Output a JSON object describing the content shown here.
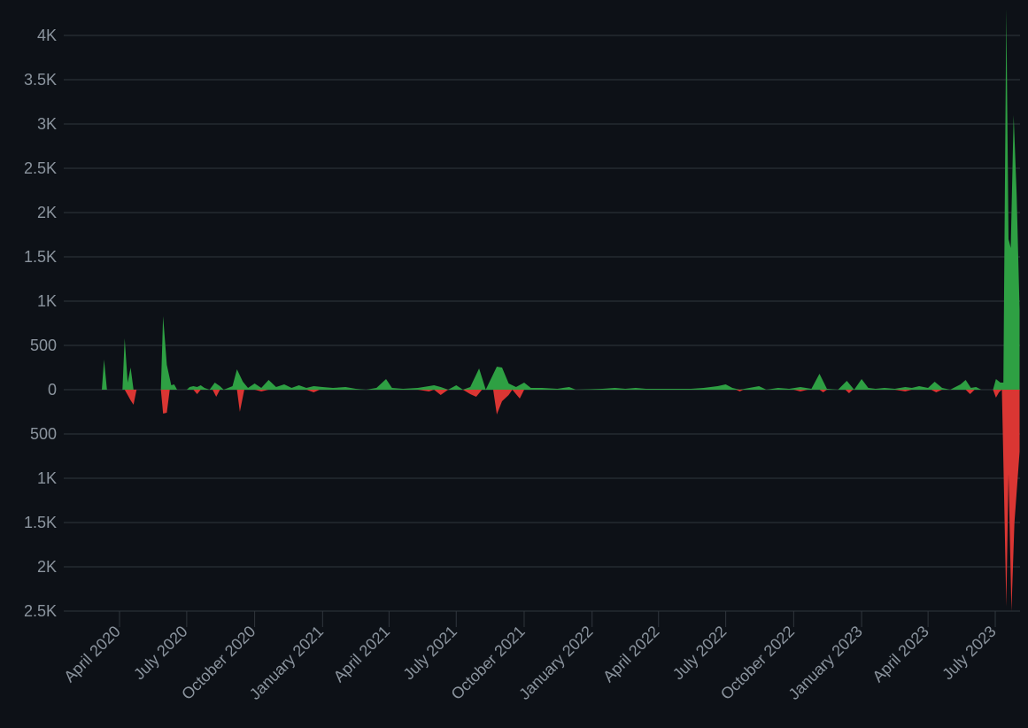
{
  "chart_data": {
    "type": "area",
    "x_axis": {
      "type": "date",
      "tick_labels": [
        "April 2020",
        "July 2020",
        "October 2020",
        "January 2021",
        "April 2021",
        "July 2021",
        "October 2021",
        "January 2022",
        "April 2022",
        "July 2022",
        "October 2022",
        "January 2023",
        "April 2023",
        "July 2023"
      ],
      "tick_dates": [
        "2020-04-01",
        "2020-07-01",
        "2020-10-01",
        "2021-01-01",
        "2021-04-01",
        "2021-07-01",
        "2021-10-01",
        "2022-01-01",
        "2022-04-01",
        "2022-07-01",
        "2022-10-01",
        "2023-01-01",
        "2023-04-01",
        "2023-07-01"
      ]
    },
    "y_axis": {
      "range": [
        -2500,
        4000
      ],
      "tick_values": [
        4000,
        3500,
        3000,
        2500,
        2000,
        1500,
        1000,
        500,
        0,
        -500,
        -1000,
        -1500,
        -2000,
        -2500
      ],
      "tick_labels": [
        "4K",
        "3.5K",
        "3K",
        "2.5K",
        "2K",
        "1.5K",
        "1K",
        "500",
        "0",
        "500",
        "1K",
        "1.5K",
        "2K",
        "2.5K"
      ],
      "grid": true
    },
    "legend": "none",
    "colors": {
      "additions": "#2ea043",
      "deletions": "#da3633",
      "background": "#0d1117",
      "grid": "#30363d",
      "text": "#8b949e"
    },
    "series": [
      {
        "color": "#2ea043",
        "points": [
          [
            "2020-03-08",
            0
          ],
          [
            "2020-03-11",
            340
          ],
          [
            "2020-03-15",
            0
          ],
          [
            "2020-04-05",
            0
          ],
          [
            "2020-04-08",
            580
          ],
          [
            "2020-04-12",
            80
          ],
          [
            "2020-04-16",
            250
          ],
          [
            "2020-04-20",
            0
          ],
          [
            "2020-05-27",
            0
          ],
          [
            "2020-05-30",
            830
          ],
          [
            "2020-06-04",
            280
          ],
          [
            "2020-06-10",
            50
          ],
          [
            "2020-06-14",
            60
          ],
          [
            "2020-06-18",
            0
          ],
          [
            "2020-07-01",
            0
          ],
          [
            "2020-07-05",
            30
          ],
          [
            "2020-07-10",
            40
          ],
          [
            "2020-07-15",
            30
          ],
          [
            "2020-07-20",
            50
          ],
          [
            "2020-07-25",
            20
          ],
          [
            "2020-08-01",
            0
          ],
          [
            "2020-08-08",
            80
          ],
          [
            "2020-08-15",
            40
          ],
          [
            "2020-08-20",
            0
          ],
          [
            "2020-09-01",
            40
          ],
          [
            "2020-09-07",
            230
          ],
          [
            "2020-09-15",
            90
          ],
          [
            "2020-09-22",
            20
          ],
          [
            "2020-10-01",
            70
          ],
          [
            "2020-10-10",
            20
          ],
          [
            "2020-10-20",
            110
          ],
          [
            "2020-10-30",
            30
          ],
          [
            "2020-11-10",
            60
          ],
          [
            "2020-11-20",
            20
          ],
          [
            "2020-11-30",
            50
          ],
          [
            "2020-12-10",
            20
          ],
          [
            "2020-12-20",
            40
          ],
          [
            "2021-01-01",
            30
          ],
          [
            "2021-01-15",
            20
          ],
          [
            "2021-02-01",
            30
          ],
          [
            "2021-02-15",
            10
          ],
          [
            "2021-03-01",
            0
          ],
          [
            "2021-03-15",
            20
          ],
          [
            "2021-03-28",
            120
          ],
          [
            "2021-04-05",
            20
          ],
          [
            "2021-04-20",
            10
          ],
          [
            "2021-05-10",
            20
          ],
          [
            "2021-05-25",
            40
          ],
          [
            "2021-06-01",
            50
          ],
          [
            "2021-06-10",
            30
          ],
          [
            "2021-06-20",
            0
          ],
          [
            "2021-07-01",
            50
          ],
          [
            "2021-07-10",
            0
          ],
          [
            "2021-07-20",
            30
          ],
          [
            "2021-08-01",
            240
          ],
          [
            "2021-08-10",
            0
          ],
          [
            "2021-08-25",
            260
          ],
          [
            "2021-09-01",
            250
          ],
          [
            "2021-09-10",
            70
          ],
          [
            "2021-09-20",
            30
          ],
          [
            "2021-10-01",
            80
          ],
          [
            "2021-10-10",
            20
          ],
          [
            "2021-10-25",
            20
          ],
          [
            "2021-11-15",
            10
          ],
          [
            "2021-12-01",
            30
          ],
          [
            "2021-12-10",
            0
          ],
          [
            "2022-01-15",
            10
          ],
          [
            "2022-02-01",
            20
          ],
          [
            "2022-02-15",
            10
          ],
          [
            "2022-03-01",
            20
          ],
          [
            "2022-03-15",
            10
          ],
          [
            "2022-04-01",
            10
          ],
          [
            "2022-04-20",
            10
          ],
          [
            "2022-05-15",
            10
          ],
          [
            "2022-06-01",
            20
          ],
          [
            "2022-06-20",
            40
          ],
          [
            "2022-07-01",
            60
          ],
          [
            "2022-07-10",
            20
          ],
          [
            "2022-07-20",
            0
          ],
          [
            "2022-08-15",
            40
          ],
          [
            "2022-08-25",
            0
          ],
          [
            "2022-09-10",
            20
          ],
          [
            "2022-09-25",
            10
          ],
          [
            "2022-10-10",
            30
          ],
          [
            "2022-10-25",
            10
          ],
          [
            "2022-11-05",
            180
          ],
          [
            "2022-11-15",
            10
          ],
          [
            "2022-11-30",
            0
          ],
          [
            "2022-12-12",
            100
          ],
          [
            "2022-12-22",
            0
          ],
          [
            "2023-01-01",
            120
          ],
          [
            "2023-01-10",
            20
          ],
          [
            "2023-01-20",
            10
          ],
          [
            "2023-02-01",
            20
          ],
          [
            "2023-02-15",
            10
          ],
          [
            "2023-03-01",
            30
          ],
          [
            "2023-03-10",
            20
          ],
          [
            "2023-03-20",
            40
          ],
          [
            "2023-04-01",
            20
          ],
          [
            "2023-04-10",
            90
          ],
          [
            "2023-04-20",
            20
          ],
          [
            "2023-05-01",
            0
          ],
          [
            "2023-05-15",
            60
          ],
          [
            "2023-05-22",
            110
          ],
          [
            "2023-05-29",
            20
          ],
          [
            "2023-06-05",
            30
          ],
          [
            "2023-06-12",
            0
          ],
          [
            "2023-06-28",
            0
          ],
          [
            "2023-07-02",
            120
          ],
          [
            "2023-07-08",
            80
          ],
          [
            "2023-07-12",
            80
          ],
          [
            "2023-07-16",
            4300
          ],
          [
            "2023-07-19",
            1700
          ],
          [
            "2023-07-22",
            1600
          ],
          [
            "2023-07-26",
            3100
          ],
          [
            "2023-07-30",
            2200
          ],
          [
            "2023-08-03",
            900
          ]
        ]
      },
      {
        "color": "#da3633",
        "points": [
          [
            "2020-04-08",
            0
          ],
          [
            "2020-04-12",
            -60
          ],
          [
            "2020-04-16",
            -120
          ],
          [
            "2020-04-20",
            -170
          ],
          [
            "2020-04-24",
            0
          ],
          [
            "2020-05-27",
            0
          ],
          [
            "2020-05-30",
            -270
          ],
          [
            "2020-06-04",
            -260
          ],
          [
            "2020-06-08",
            0
          ],
          [
            "2020-07-10",
            0
          ],
          [
            "2020-07-15",
            -50
          ],
          [
            "2020-07-20",
            0
          ],
          [
            "2020-08-05",
            0
          ],
          [
            "2020-08-10",
            -80
          ],
          [
            "2020-08-15",
            0
          ],
          [
            "2020-09-07",
            0
          ],
          [
            "2020-09-11",
            -250
          ],
          [
            "2020-09-17",
            0
          ],
          [
            "2020-10-01",
            0
          ],
          [
            "2020-10-10",
            -20
          ],
          [
            "2020-10-20",
            0
          ],
          [
            "2020-12-10",
            0
          ],
          [
            "2020-12-20",
            -30
          ],
          [
            "2020-12-28",
            0
          ],
          [
            "2021-05-10",
            0
          ],
          [
            "2021-05-25",
            -20
          ],
          [
            "2021-06-01",
            0
          ],
          [
            "2021-06-10",
            -60
          ],
          [
            "2021-06-20",
            0
          ],
          [
            "2021-07-10",
            0
          ],
          [
            "2021-07-20",
            -50
          ],
          [
            "2021-07-28",
            -80
          ],
          [
            "2021-08-05",
            0
          ],
          [
            "2021-08-20",
            0
          ],
          [
            "2021-08-25",
            -280
          ],
          [
            "2021-09-01",
            -130
          ],
          [
            "2021-09-10",
            -60
          ],
          [
            "2021-09-15",
            0
          ],
          [
            "2021-09-25",
            -100
          ],
          [
            "2021-10-01",
            0
          ],
          [
            "2022-07-15",
            0
          ],
          [
            "2022-07-20",
            -20
          ],
          [
            "2022-07-25",
            0
          ],
          [
            "2022-10-01",
            0
          ],
          [
            "2022-10-10",
            -20
          ],
          [
            "2022-10-20",
            0
          ],
          [
            "2022-11-05",
            0
          ],
          [
            "2022-11-10",
            -30
          ],
          [
            "2022-11-15",
            0
          ],
          [
            "2022-12-10",
            0
          ],
          [
            "2022-12-15",
            -40
          ],
          [
            "2022-12-20",
            0
          ],
          [
            "2023-02-15",
            0
          ],
          [
            "2023-03-01",
            -20
          ],
          [
            "2023-03-10",
            0
          ],
          [
            "2023-04-05",
            0
          ],
          [
            "2023-04-12",
            -30
          ],
          [
            "2023-04-20",
            0
          ],
          [
            "2023-05-22",
            0
          ],
          [
            "2023-05-28",
            -50
          ],
          [
            "2023-06-03",
            0
          ],
          [
            "2023-06-28",
            0
          ],
          [
            "2023-07-02",
            -90
          ],
          [
            "2023-07-06",
            -30
          ],
          [
            "2023-07-10",
            0
          ],
          [
            "2023-07-13",
            -1200
          ],
          [
            "2023-07-16",
            -2450
          ],
          [
            "2023-07-19",
            -950
          ],
          [
            "2023-07-23",
            -2500
          ],
          [
            "2023-07-27",
            -1500
          ],
          [
            "2023-08-03",
            -700
          ],
          [
            "2023-08-03",
            0
          ]
        ]
      }
    ]
  }
}
